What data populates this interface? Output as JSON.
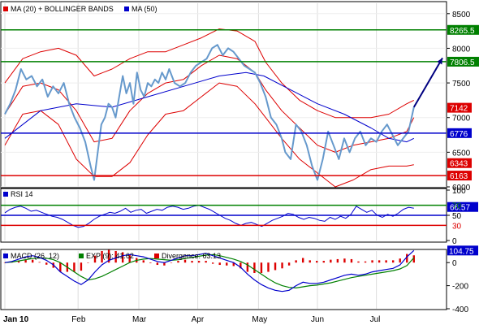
{
  "chart_data": [
    {
      "type": "line",
      "title": "",
      "legend": [
        {
          "label": "MA (20) + BOLLINGER BANDS",
          "color": "#dd0000"
        },
        {
          "label": "MA (50)",
          "color": "#0000cc"
        }
      ],
      "ylim": [
        6000,
        8650
      ],
      "y_ticks": [
        6000,
        6500,
        7000,
        7500,
        8000,
        8500
      ],
      "price": [
        [
          0,
          7050
        ],
        [
          3,
          7200
        ],
        [
          6,
          7400
        ],
        [
          9,
          7700
        ],
        [
          12,
          7550
        ],
        [
          15,
          7600
        ],
        [
          18,
          7450
        ],
        [
          21,
          7550
        ],
        [
          24,
          7300
        ],
        [
          27,
          7450
        ],
        [
          30,
          7350
        ],
        [
          33,
          7500
        ],
        [
          36,
          7200
        ],
        [
          39,
          7000
        ],
        [
          42,
          6850
        ],
        [
          45,
          6650
        ],
        [
          48,
          6300
        ],
        [
          50,
          6100
        ],
        [
          52,
          6500
        ],
        [
          54,
          6900
        ],
        [
          56,
          7000
        ],
        [
          58,
          7200
        ],
        [
          60,
          7150
        ],
        [
          62,
          7000
        ],
        [
          64,
          7300
        ],
        [
          66,
          7600
        ],
        [
          68,
          7350
        ],
        [
          70,
          7500
        ],
        [
          72,
          7200
        ],
        [
          74,
          7650
        ],
        [
          76,
          7400
        ],
        [
          78,
          7300
        ],
        [
          80,
          7500
        ],
        [
          82,
          7450
        ],
        [
          84,
          7550
        ],
        [
          86,
          7500
        ],
        [
          88,
          7650
        ],
        [
          90,
          7550
        ],
        [
          92,
          7700
        ],
        [
          95,
          7500
        ],
        [
          98,
          7450
        ],
        [
          101,
          7500
        ],
        [
          104,
          7650
        ],
        [
          107,
          7750
        ],
        [
          110,
          7800
        ],
        [
          113,
          7850
        ],
        [
          116,
          8000
        ],
        [
          119,
          8050
        ],
        [
          122,
          7900
        ],
        [
          125,
          8000
        ],
        [
          128,
          7950
        ],
        [
          131,
          7850
        ],
        [
          134,
          7750
        ],
        [
          137,
          7700
        ],
        [
          140,
          7650
        ],
        [
          143,
          7500
        ],
        [
          146,
          7300
        ],
        [
          149,
          7000
        ],
        [
          152,
          6900
        ],
        [
          155,
          6700
        ],
        [
          157,
          6500
        ],
        [
          160,
          6400
        ],
        [
          163,
          6900
        ],
        [
          166,
          6800
        ],
        [
          169,
          6600
        ],
        [
          172,
          6300
        ],
        [
          175,
          6100
        ],
        [
          178,
          6400
        ],
        [
          181,
          6800
        ],
        [
          184,
          6600
        ],
        [
          187,
          6400
        ],
        [
          190,
          6700
        ],
        [
          193,
          6500
        ],
        [
          196,
          6700
        ],
        [
          199,
          6800
        ],
        [
          202,
          6600
        ],
        [
          205,
          6700
        ],
        [
          208,
          6650
        ],
        [
          211,
          6800
        ],
        [
          214,
          6900
        ],
        [
          217,
          6750
        ],
        [
          220,
          6600
        ],
        [
          223,
          6700
        ],
        [
          226,
          6800
        ],
        [
          229,
          7150
        ]
      ],
      "ma20": [
        [
          0,
          7050
        ],
        [
          10,
          7450
        ],
        [
          20,
          7500
        ],
        [
          30,
          7400
        ],
        [
          40,
          7100
        ],
        [
          50,
          6650
        ],
        [
          60,
          6700
        ],
        [
          70,
          7100
        ],
        [
          80,
          7350
        ],
        [
          90,
          7500
        ],
        [
          100,
          7550
        ],
        [
          110,
          7750
        ],
        [
          120,
          7900
        ],
        [
          130,
          7850
        ],
        [
          140,
          7650
        ],
        [
          146,
          7400
        ],
        [
          155,
          7100
        ],
        [
          165,
          6850
        ],
        [
          175,
          6600
        ],
        [
          185,
          6500
        ],
        [
          195,
          6600
        ],
        [
          205,
          6650
        ],
        [
          215,
          6700
        ],
        [
          225,
          6800
        ],
        [
          229,
          7000
        ]
      ],
      "bb_upper": [
        [
          0,
          7500
        ],
        [
          10,
          7850
        ],
        [
          20,
          7950
        ],
        [
          30,
          8000
        ],
        [
          40,
          7900
        ],
        [
          50,
          7600
        ],
        [
          60,
          7700
        ],
        [
          70,
          7850
        ],
        [
          80,
          7950
        ],
        [
          90,
          7950
        ],
        [
          100,
          8050
        ],
        [
          110,
          8150
        ],
        [
          120,
          8280
        ],
        [
          130,
          8250
        ],
        [
          140,
          8100
        ],
        [
          146,
          7800
        ],
        [
          155,
          7500
        ],
        [
          165,
          7250
        ],
        [
          175,
          7100
        ],
        [
          185,
          7000
        ],
        [
          195,
          7000
        ],
        [
          205,
          7000
        ],
        [
          215,
          7050
        ],
        [
          225,
          7200
        ],
        [
          229,
          7250
        ]
      ],
      "bb_lower": [
        [
          0,
          6600
        ],
        [
          10,
          7050
        ],
        [
          20,
          7100
        ],
        [
          30,
          6900
        ],
        [
          40,
          6400
        ],
        [
          50,
          6150
        ],
        [
          60,
          6150
        ],
        [
          70,
          6350
        ],
        [
          80,
          6750
        ],
        [
          90,
          7050
        ],
        [
          100,
          7100
        ],
        [
          110,
          7300
        ],
        [
          120,
          7500
        ],
        [
          130,
          7450
        ],
        [
          140,
          7200
        ],
        [
          146,
          7000
        ],
        [
          155,
          6700
        ],
        [
          165,
          6400
        ],
        [
          175,
          6200
        ],
        [
          185,
          6000
        ],
        [
          195,
          6100
        ],
        [
          205,
          6250
        ],
        [
          215,
          6300
        ],
        [
          225,
          6300
        ],
        [
          229,
          6320
        ]
      ],
      "ma50": [
        [
          0,
          6700
        ],
        [
          20,
          7100
        ],
        [
          40,
          7200
        ],
        [
          60,
          7150
        ],
        [
          80,
          7300
        ],
        [
          100,
          7450
        ],
        [
          120,
          7600
        ],
        [
          135,
          7650
        ],
        [
          145,
          7600
        ],
        [
          160,
          7400
        ],
        [
          175,
          7200
        ],
        [
          190,
          7050
        ],
        [
          205,
          6850
        ],
        [
          215,
          6700
        ],
        [
          225,
          6650
        ],
        [
          229,
          6700
        ]
      ],
      "h_lines": [
        {
          "value": 8265.5,
          "label": "8265.5",
          "color": "#008000"
        },
        {
          "value": 7806.5,
          "label": "7806.5",
          "color": "#008000"
        },
        {
          "value": 6776,
          "label": "6776",
          "color": "#0000cc"
        },
        {
          "value": 6163,
          "label": "6163",
          "color": "#dd0000"
        }
      ],
      "markers": [
        {
          "value": 7142,
          "label": "7142",
          "color": "#dd0000"
        },
        {
          "value": 6343,
          "label": "6343",
          "color": "#dd0000"
        }
      ],
      "arrow": {
        "from": [
          229,
          7150
        ],
        "to": [
          245,
          7860
        ],
        "color": "#000080"
      }
    },
    {
      "type": "line",
      "legend": [
        {
          "label": "RSI 14",
          "color": "#0000cc"
        }
      ],
      "ylim": [
        0,
        100
      ],
      "y_ticks": [
        0,
        50,
        100
      ],
      "levels": [
        {
          "value": 70,
          "color": "#008000"
        },
        {
          "value": 50,
          "color": "#0000cc"
        },
        {
          "value": 30,
          "color": "#dd0000"
        }
      ],
      "level_labels": [
        "70",
        "30"
      ],
      "marker": {
        "value": 66.57,
        "label": "66.57"
      },
      "values": [
        55,
        62,
        66,
        68,
        64,
        58,
        60,
        56,
        52,
        48,
        46,
        42,
        36,
        30,
        26,
        28,
        34,
        42,
        48,
        52,
        56,
        54,
        58,
        64,
        56,
        60,
        62,
        54,
        58,
        62,
        60,
        66,
        68,
        66,
        62,
        64,
        68,
        70,
        66,
        62,
        56,
        50,
        44,
        40,
        34,
        30,
        34,
        36,
        32,
        28,
        34,
        40,
        44,
        48,
        54,
        52,
        46,
        42,
        46,
        44,
        40,
        38,
        46,
        42,
        48,
        44,
        52,
        68,
        62,
        56,
        60,
        50,
        46,
        52,
        48,
        54,
        62,
        66,
        64
      ]
    },
    {
      "type": "bar",
      "legend": [
        {
          "label": "MACD (26, 12)",
          "color": "#0000cc"
        },
        {
          "label": "EXP (9): 41.62",
          "color": "#008000"
        },
        {
          "label": "Divergence: 63.13",
          "color": "#dd0000"
        }
      ],
      "ylim": [
        -400,
        100
      ],
      "y_ticks": [
        -400,
        -200,
        0
      ],
      "marker": {
        "value": 104.75,
        "label": "104.75"
      },
      "macd": [
        0,
        10,
        30,
        50,
        60,
        45,
        20,
        -20,
        -80,
        -120,
        -160,
        -190,
        -150,
        -80,
        -20,
        20,
        40,
        60,
        70,
        60,
        50,
        30,
        10,
        0,
        20,
        40,
        60,
        60,
        70,
        80,
        60,
        40,
        20,
        0,
        -40,
        -100,
        -150,
        -190,
        -220,
        -240,
        -250,
        -240,
        -200,
        -170,
        -180,
        -180,
        -170,
        -150,
        -130,
        -110,
        -100,
        -110,
        -100,
        -80,
        -70,
        -60,
        -50,
        -20,
        50,
        105
      ],
      "signal": [
        0,
        5,
        15,
        25,
        35,
        40,
        38,
        25,
        0,
        -40,
        -80,
        -120,
        -150,
        -140,
        -120,
        -90,
        -60,
        -30,
        0,
        20,
        30,
        35,
        30,
        25,
        20,
        25,
        35,
        45,
        55,
        65,
        70,
        60,
        45,
        30,
        10,
        -20,
        -60,
        -100,
        -140,
        -175,
        -200,
        -215,
        -220,
        -210,
        -200,
        -195,
        -185,
        -175,
        -160,
        -145,
        -130,
        -120,
        -110,
        -100,
        -90,
        -80,
        -70,
        -55,
        -25,
        42
      ],
      "divergence": [
        0,
        5,
        15,
        25,
        25,
        5,
        -18,
        -45,
        -80,
        -80,
        -80,
        -70,
        0,
        60,
        100,
        110,
        100,
        90,
        70,
        40,
        20,
        -5,
        -20,
        -25,
        0,
        15,
        25,
        15,
        15,
        15,
        -10,
        -20,
        -25,
        -30,
        -50,
        -80,
        -90,
        -90,
        -80,
        -65,
        -50,
        -25,
        20,
        40,
        20,
        15,
        15,
        25,
        30,
        35,
        30,
        10,
        10,
        20,
        20,
        20,
        20,
        35,
        75,
        63
      ]
    }
  ],
  "x_axis": {
    "labels": [
      "Jan 10",
      "Feb",
      "Mar",
      "Apr",
      "May",
      "Jun",
      "Jul"
    ],
    "positions": [
      0,
      41,
      75,
      108,
      142,
      175,
      208
    ]
  }
}
